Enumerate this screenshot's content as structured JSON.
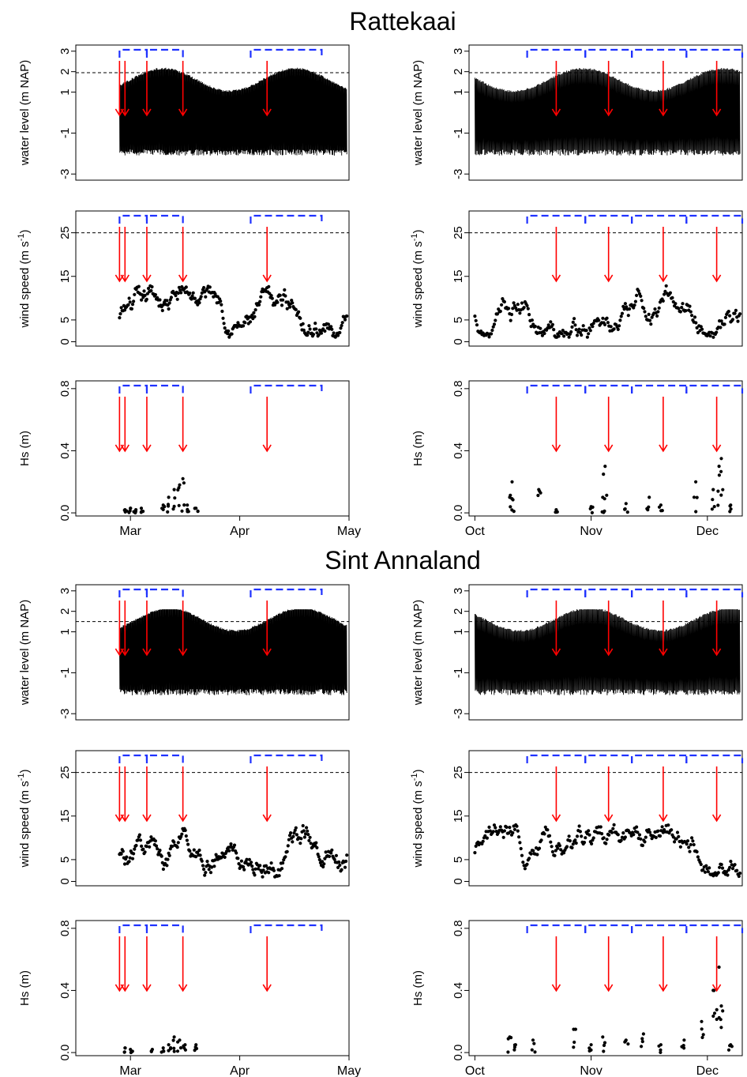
{
  "figure": {
    "titles": [
      "Rattekaai",
      "Sint Annaland"
    ]
  },
  "chart_data": [
    {
      "type": "line",
      "site": "Rattekaai",
      "season": "spring",
      "ylabel": "water level (m NAP)",
      "ylim": [
        -3.3,
        3.3
      ],
      "yticks": [
        -3,
        -1,
        1,
        2,
        3
      ],
      "threshold": 1.95,
      "xlim": [
        -0.5,
        2.0
      ],
      "events": [
        -0.1,
        -0.05,
        0.15,
        0.48,
        1.25
      ],
      "brackets": [
        [
          -0.1,
          0.15
        ],
        [
          0.15,
          0.48
        ],
        [
          1.1,
          1.75
        ]
      ]
    },
    {
      "type": "scatter",
      "site": "Rattekaai",
      "season": "spring",
      "ylabel": "wind speed (m s-1)",
      "ylim": [
        -1,
        30
      ],
      "yticks": [
        0,
        5,
        15,
        25
      ],
      "threshold": 25,
      "xlim": [
        -0.5,
        2.0
      ],
      "events": [
        -0.1,
        -0.05,
        0.15,
        0.48,
        1.25
      ],
      "brackets": [
        [
          -0.1,
          0.15
        ],
        [
          0.15,
          0.48
        ],
        [
          1.1,
          1.75
        ]
      ]
    },
    {
      "type": "scatter",
      "site": "Rattekaai",
      "season": "spring",
      "ylabel": "Hs (m)",
      "ylim": [
        -0.02,
        0.85
      ],
      "yticks": [
        0.0,
        0.4,
        0.8
      ],
      "xlim": [
        -0.5,
        2.0
      ],
      "xticks": [
        {
          "v": 0,
          "label": "Mar"
        },
        {
          "v": 1,
          "label": "Apr"
        },
        {
          "v": 2,
          "label": "May"
        }
      ],
      "events": [
        -0.1,
        -0.05,
        0.15,
        0.48,
        1.25
      ],
      "brackets": [
        [
          -0.1,
          0.15
        ],
        [
          0.15,
          0.48
        ],
        [
          1.1,
          1.75
        ]
      ],
      "hs_points": [
        [
          -0.05,
          0.02
        ],
        [
          0.0,
          0.03
        ],
        [
          0.05,
          0.02
        ],
        [
          0.1,
          0.03
        ],
        [
          0.3,
          0.05
        ],
        [
          0.35,
          0.1
        ],
        [
          0.4,
          0.15
        ],
        [
          0.45,
          0.18
        ],
        [
          0.48,
          0.22
        ],
        [
          0.52,
          0.05
        ],
        [
          0.6,
          0.03
        ]
      ]
    },
    {
      "type": "line",
      "site": "Rattekaai",
      "season": "autumn",
      "ylabel": "water level (m NAP)",
      "ylim": [
        -3.3,
        3.3
      ],
      "yticks": [
        -3,
        -1,
        1,
        2,
        3
      ],
      "threshold": 1.95,
      "xlim": [
        -0.05,
        2.3
      ],
      "events": [
        0.7,
        1.15,
        1.62,
        2.08
      ],
      "brackets": [
        [
          0.45,
          0.95
        ],
        [
          0.95,
          1.35
        ],
        [
          1.35,
          1.82
        ],
        [
          1.82,
          2.3
        ]
      ]
    },
    {
      "type": "scatter",
      "site": "Rattekaai",
      "season": "autumn",
      "ylabel": "wind speed (m s-1)",
      "ylim": [
        -1,
        30
      ],
      "yticks": [
        0,
        5,
        15,
        25
      ],
      "threshold": 25,
      "xlim": [
        -0.05,
        2.3
      ],
      "events": [
        0.7,
        1.15,
        1.62,
        2.08
      ],
      "brackets": [
        [
          0.45,
          0.95
        ],
        [
          0.95,
          1.35
        ],
        [
          1.35,
          1.82
        ],
        [
          1.82,
          2.3
        ]
      ]
    },
    {
      "type": "scatter",
      "site": "Rattekaai",
      "season": "autumn",
      "ylabel": "Hs (m)",
      "ylim": [
        -0.02,
        0.85
      ],
      "yticks": [
        0.0,
        0.4,
        0.8
      ],
      "xlim": [
        -0.05,
        2.3
      ],
      "xticks": [
        {
          "v": 0,
          "label": "Oct"
        },
        {
          "v": 1,
          "label": "Nov"
        },
        {
          "v": 2,
          "label": "Dec"
        }
      ],
      "events": [
        0.7,
        1.15,
        1.62,
        2.08
      ],
      "brackets": [
        [
          0.45,
          0.95
        ],
        [
          0.95,
          1.35
        ],
        [
          1.35,
          1.82
        ],
        [
          1.82,
          2.3
        ]
      ],
      "hs_points": [
        [
          0.3,
          0.1
        ],
        [
          0.32,
          0.2
        ],
        [
          0.55,
          0.15
        ],
        [
          0.7,
          0.02
        ],
        [
          1.0,
          0.04
        ],
        [
          1.1,
          0.1
        ],
        [
          1.12,
          0.3
        ],
        [
          1.3,
          0.06
        ],
        [
          1.5,
          0.1
        ],
        [
          1.6,
          0.05
        ],
        [
          1.9,
          0.2
        ],
        [
          2.05,
          0.15
        ],
        [
          2.1,
          0.3
        ],
        [
          2.12,
          0.35
        ],
        [
          2.2,
          0.05
        ]
      ]
    },
    {
      "type": "line",
      "site": "Sint Annaland",
      "season": "spring",
      "ylabel": "water level (m NAP)",
      "ylim": [
        -3.3,
        3.3
      ],
      "yticks": [
        -3,
        -1,
        1,
        2,
        3
      ],
      "threshold": 1.5,
      "xlim": [
        -0.5,
        2.0
      ],
      "events": [
        -0.1,
        -0.05,
        0.15,
        0.48,
        1.25
      ],
      "brackets": [
        [
          -0.1,
          0.15
        ],
        [
          0.15,
          0.48
        ],
        [
          1.1,
          1.75
        ]
      ]
    },
    {
      "type": "scatter",
      "site": "Sint Annaland",
      "season": "spring",
      "ylabel": "wind speed (m s-1)",
      "ylim": [
        -1,
        30
      ],
      "yticks": [
        0,
        5,
        15,
        25
      ],
      "threshold": 25,
      "xlim": [
        -0.5,
        2.0
      ],
      "events": [
        -0.1,
        -0.05,
        0.15,
        0.48,
        1.25
      ],
      "brackets": [
        [
          -0.1,
          0.15
        ],
        [
          0.15,
          0.48
        ],
        [
          1.1,
          1.75
        ]
      ]
    },
    {
      "type": "scatter",
      "site": "Sint Annaland",
      "season": "spring",
      "ylabel": "Hs (m)",
      "ylim": [
        -0.02,
        0.85
      ],
      "yticks": [
        0.0,
        0.4,
        0.8
      ],
      "xlim": [
        -0.5,
        2.0
      ],
      "xticks": [
        {
          "v": 0,
          "label": "Mar"
        },
        {
          "v": 1,
          "label": "Apr"
        },
        {
          "v": 2,
          "label": "May"
        }
      ],
      "events": [
        -0.1,
        -0.05,
        0.15,
        0.48,
        1.25
      ],
      "brackets": [
        [
          -0.1,
          0.15
        ],
        [
          0.15,
          0.48
        ],
        [
          1.1,
          1.75
        ]
      ],
      "hs_points": [
        [
          -0.05,
          0.03
        ],
        [
          0.0,
          0.02
        ],
        [
          0.2,
          0.02
        ],
        [
          0.3,
          0.03
        ],
        [
          0.35,
          0.05
        ],
        [
          0.4,
          0.1
        ],
        [
          0.45,
          0.08
        ],
        [
          0.5,
          0.05
        ],
        [
          0.6,
          0.05
        ]
      ]
    },
    {
      "type": "line",
      "site": "Sint Annaland",
      "season": "autumn",
      "ylabel": "water level (m NAP)",
      "ylim": [
        -3.3,
        3.3
      ],
      "yticks": [
        -3,
        -1,
        1,
        2,
        3
      ],
      "threshold": 1.5,
      "xlim": [
        -0.05,
        2.3
      ],
      "events": [
        0.7,
        1.15,
        1.62,
        2.08
      ],
      "brackets": [
        [
          0.45,
          0.95
        ],
        [
          0.95,
          1.35
        ],
        [
          1.35,
          1.82
        ],
        [
          1.82,
          2.3
        ]
      ]
    },
    {
      "type": "scatter",
      "site": "Sint Annaland",
      "season": "autumn",
      "ylabel": "wind speed (m s-1)",
      "ylim": [
        -1,
        30
      ],
      "yticks": [
        0,
        5,
        15,
        25
      ],
      "threshold": 25,
      "xlim": [
        -0.05,
        2.3
      ],
      "events": [
        0.7,
        1.15,
        1.62,
        2.08
      ],
      "brackets": [
        [
          0.45,
          0.95
        ],
        [
          0.95,
          1.35
        ],
        [
          1.35,
          1.82
        ],
        [
          1.82,
          2.3
        ]
      ]
    },
    {
      "type": "scatter",
      "site": "Sint Annaland",
      "season": "autumn",
      "ylabel": "Hs (m)",
      "ylim": [
        -0.02,
        0.85
      ],
      "yticks": [
        0.0,
        0.4,
        0.8
      ],
      "xlim": [
        -0.05,
        2.3
      ],
      "xticks": [
        {
          "v": 0,
          "label": "Oct"
        },
        {
          "v": 1,
          "label": "Nov"
        },
        {
          "v": 2,
          "label": "Dec"
        }
      ],
      "events": [
        0.7,
        1.15,
        1.62,
        2.08
      ],
      "brackets": [
        [
          0.45,
          0.95
        ],
        [
          0.95,
          1.35
        ],
        [
          1.35,
          1.82
        ],
        [
          1.82,
          2.3
        ]
      ],
      "hs_points": [
        [
          0.3,
          0.1
        ],
        [
          0.35,
          0.05
        ],
        [
          0.5,
          0.08
        ],
        [
          0.85,
          0.15
        ],
        [
          1.0,
          0.05
        ],
        [
          1.1,
          0.1
        ],
        [
          1.3,
          0.08
        ],
        [
          1.45,
          0.12
        ],
        [
          1.6,
          0.05
        ],
        [
          1.8,
          0.08
        ],
        [
          1.95,
          0.2
        ],
        [
          2.05,
          0.4
        ],
        [
          2.1,
          0.55
        ],
        [
          2.12,
          0.3
        ],
        [
          2.2,
          0.05
        ]
      ]
    }
  ]
}
